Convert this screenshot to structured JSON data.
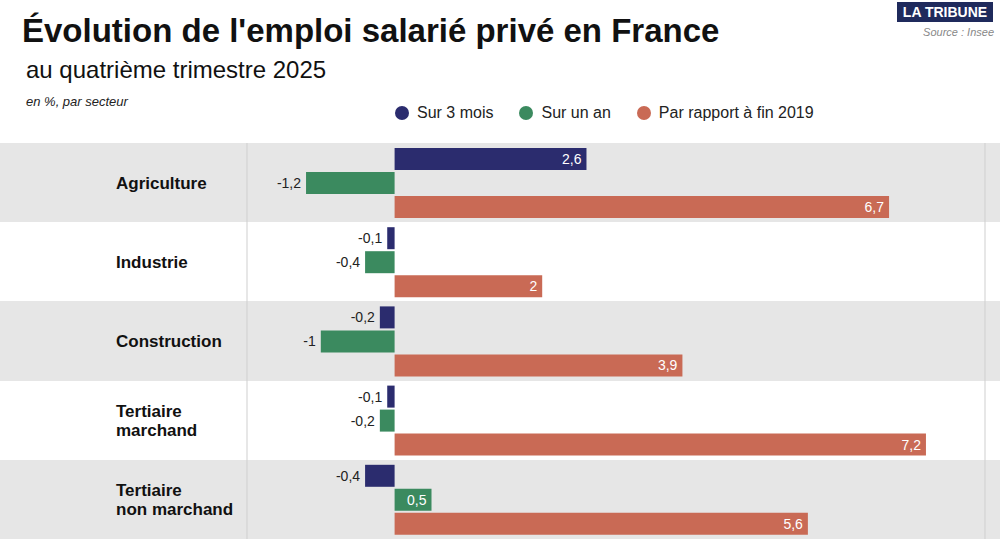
{
  "chart_data": {
    "type": "bar",
    "orientation": "horizontal",
    "title": "Évolution de l'emploi salarié privé en France",
    "subtitle": "au quatrième trimestre 2025",
    "note": "en %, par secteur",
    "source": "Source : Insee",
    "publisher": "LA TRIBUNE",
    "categories": [
      "Agriculture",
      "Industrie",
      "Construction",
      "Tertiaire marchand",
      "Tertiaire non marchand"
    ],
    "series": [
      {
        "name": "Sur 3 mois",
        "color": "#2b2c6e",
        "values": [
          2.6,
          -0.1,
          -0.2,
          -0.1,
          -0.4
        ],
        "value_labels": [
          "2,6",
          "-0,1",
          "-0,2",
          "-0,1",
          "-0,4"
        ]
      },
      {
        "name": "Sur un an",
        "color": "#3b8a5f",
        "values": [
          -1.2,
          -0.4,
          -1,
          -0.2,
          0.5
        ],
        "value_labels": [
          "-1,2",
          "-0,4",
          "-1",
          "-0,2",
          "0,5"
        ]
      },
      {
        "name": "Par rapport à fin 2019",
        "color": "#c96a55",
        "values": [
          6.7,
          2,
          3.9,
          7.2,
          5.6
        ],
        "value_labels": [
          "6,7",
          "2",
          "3,9",
          "7,2",
          "5,6"
        ]
      }
    ],
    "xlim": [
      -2,
      8
    ],
    "xticks": [
      -2,
      0,
      2,
      4,
      6,
      8
    ],
    "grid": true,
    "tick_labels": false,
    "data_labels": true,
    "legend": "top"
  }
}
